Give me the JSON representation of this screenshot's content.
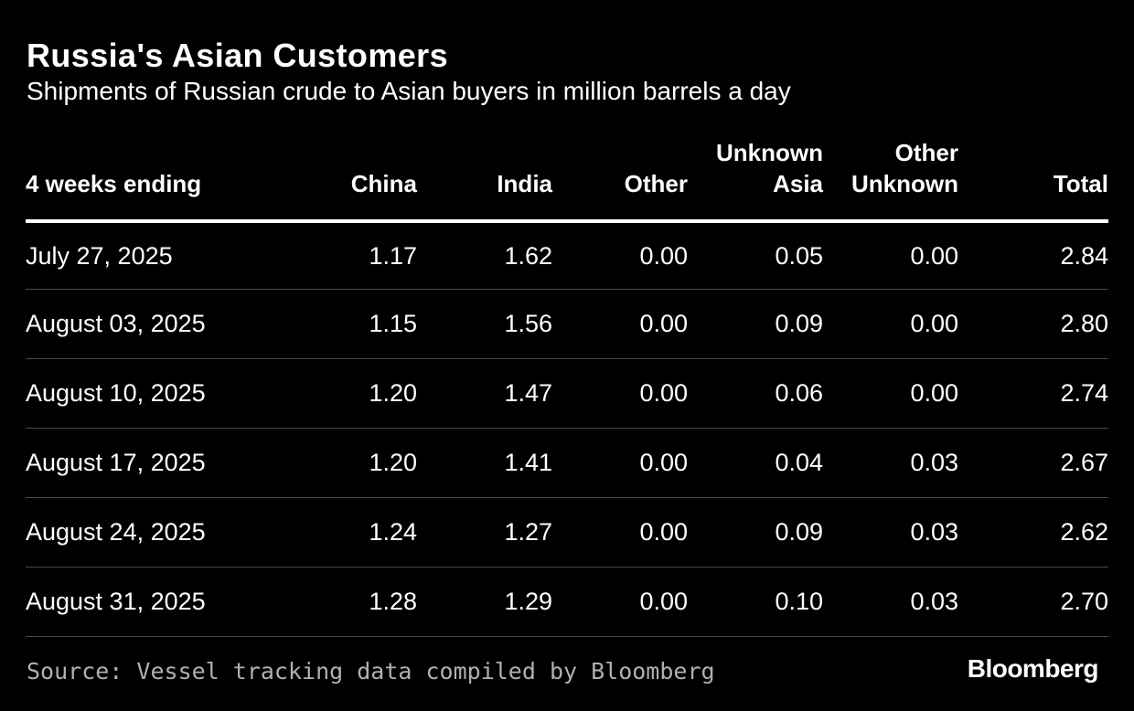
{
  "title": "Russia's Asian Customers",
  "subtitle": "Shipments of Russian crude to Asian buyers in million barrels a day",
  "source": "Source: Vessel tracking data compiled by Bloomberg",
  "brand": "Bloomberg",
  "colors": {
    "background": "#000000",
    "text": "#ffffff",
    "source_text": "#b0b0b0",
    "header_rule": "#ffffff",
    "row_rule": "#4a4a4a"
  },
  "chart_data": {
    "type": "table",
    "title": "Russia's Asian Customers",
    "subtitle": "Shipments of Russian crude to Asian buyers in million barrels a day",
    "columns": [
      {
        "key": "period",
        "lines": [
          "4 weeks ending"
        ]
      },
      {
        "key": "china",
        "lines": [
          "China"
        ]
      },
      {
        "key": "india",
        "lines": [
          "India"
        ]
      },
      {
        "key": "other",
        "lines": [
          "Other"
        ]
      },
      {
        "key": "unknown_asia",
        "lines": [
          "Unknown",
          "Asia"
        ]
      },
      {
        "key": "other_unknown",
        "lines": [
          "Other",
          "Unknown"
        ]
      },
      {
        "key": "total",
        "lines": [
          "Total"
        ]
      }
    ],
    "rows": [
      {
        "period": "July 27, 2025",
        "china": "1.17",
        "india": "1.62",
        "other": "0.00",
        "unknown_asia": "0.05",
        "other_unknown": "0.00",
        "total": "2.84"
      },
      {
        "period": "August 03, 2025",
        "china": "1.15",
        "india": "1.56",
        "other": "0.00",
        "unknown_asia": "0.09",
        "other_unknown": "0.00",
        "total": "2.80"
      },
      {
        "period": "August 10, 2025",
        "china": "1.20",
        "india": "1.47",
        "other": "0.00",
        "unknown_asia": "0.06",
        "other_unknown": "0.00",
        "total": "2.74"
      },
      {
        "period": "August 17, 2025",
        "china": "1.20",
        "india": "1.41",
        "other": "0.00",
        "unknown_asia": "0.04",
        "other_unknown": "0.03",
        "total": "2.67"
      },
      {
        "period": "August 24, 2025",
        "china": "1.24",
        "india": "1.27",
        "other": "0.00",
        "unknown_asia": "0.09",
        "other_unknown": "0.03",
        "total": "2.62"
      },
      {
        "period": "August 31, 2025",
        "china": "1.28",
        "india": "1.29",
        "other": "0.00",
        "unknown_asia": "0.10",
        "other_unknown": "0.03",
        "total": "2.70"
      }
    ]
  }
}
